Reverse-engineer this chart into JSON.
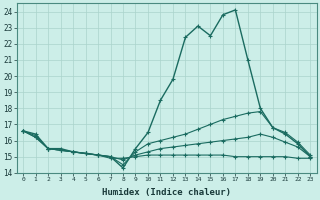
{
  "title": "",
  "xlabel": "Humidex (Indice chaleur)",
  "xlim": [
    -0.5,
    23.5
  ],
  "ylim": [
    14,
    24.5
  ],
  "yticks": [
    14,
    15,
    16,
    17,
    18,
    19,
    20,
    21,
    22,
    23,
    24
  ],
  "xticks": [
    0,
    1,
    2,
    3,
    4,
    5,
    6,
    7,
    8,
    9,
    10,
    11,
    12,
    13,
    14,
    15,
    16,
    17,
    18,
    19,
    20,
    21,
    22,
    23
  ],
  "background_color": "#cceee8",
  "grid_color": "#aad4cc",
  "line_color": "#1a6b60",
  "lines": [
    {
      "x": [
        0,
        1,
        2,
        3,
        4,
        5,
        6,
        7,
        8,
        9,
        10,
        11,
        12,
        13,
        14,
        15,
        16,
        17,
        18,
        19,
        20,
        21,
        22,
        23
      ],
      "y": [
        16.6,
        16.4,
        15.5,
        15.5,
        15.3,
        15.2,
        15.1,
        15.0,
        14.3,
        15.5,
        16.5,
        18.5,
        19.8,
        22.4,
        23.1,
        22.5,
        23.8,
        24.1,
        21.0,
        18.0,
        16.8,
        16.4,
        15.8,
        15.0
      ],
      "marker": "+",
      "markersize": 3.5,
      "linewidth": 1.0
    },
    {
      "x": [
        0,
        1,
        2,
        3,
        4,
        5,
        6,
        7,
        8,
        9,
        10,
        11,
        12,
        13,
        14,
        15,
        16,
        17,
        18,
        19,
        20,
        21,
        22,
        23
      ],
      "y": [
        16.6,
        16.3,
        15.5,
        15.4,
        15.3,
        15.2,
        15.1,
        15.0,
        14.5,
        15.3,
        15.8,
        16.0,
        16.2,
        16.4,
        16.7,
        17.0,
        17.3,
        17.5,
        17.7,
        17.8,
        16.8,
        16.5,
        15.9,
        15.1
      ],
      "marker": "+",
      "markersize": 3.0,
      "linewidth": 0.8
    },
    {
      "x": [
        0,
        1,
        2,
        3,
        4,
        5,
        6,
        7,
        8,
        9,
        10,
        11,
        12,
        13,
        14,
        15,
        16,
        17,
        18,
        19,
        20,
        21,
        22,
        23
      ],
      "y": [
        16.6,
        16.2,
        15.5,
        15.4,
        15.3,
        15.2,
        15.1,
        15.0,
        14.8,
        15.1,
        15.3,
        15.5,
        15.6,
        15.7,
        15.8,
        15.9,
        16.0,
        16.1,
        16.2,
        16.4,
        16.2,
        15.9,
        15.6,
        15.0
      ],
      "marker": "+",
      "markersize": 3.0,
      "linewidth": 0.8
    },
    {
      "x": [
        0,
        1,
        2,
        3,
        4,
        5,
        6,
        7,
        8,
        9,
        10,
        11,
        12,
        13,
        14,
        15,
        16,
        17,
        18,
        19,
        20,
        21,
        22,
        23
      ],
      "y": [
        16.6,
        16.2,
        15.5,
        15.4,
        15.3,
        15.2,
        15.1,
        14.9,
        14.9,
        15.0,
        15.1,
        15.1,
        15.1,
        15.1,
        15.1,
        15.1,
        15.1,
        15.0,
        15.0,
        15.0,
        15.0,
        15.0,
        14.9,
        14.9
      ],
      "marker": "+",
      "markersize": 3.0,
      "linewidth": 0.8
    }
  ]
}
